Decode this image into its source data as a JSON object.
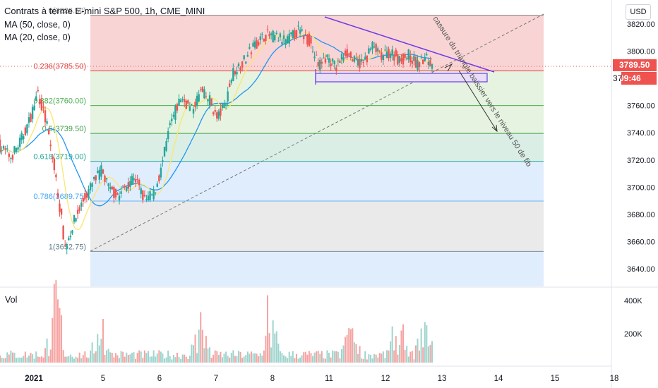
{
  "legend": {
    "title": "Contrats à terme E-mini S&P 500, 1h, CME_MINI",
    "ma50": "MA (50, close, 0)",
    "ma20": "MA (20, close, 0)"
  },
  "currency_button": "USD",
  "volume_label": "Vol",
  "last_price": "3789.50",
  "countdown": "09:46",
  "partial_axis_label": "37",
  "colors": {
    "up": "#26a69a",
    "down": "#ef5350",
    "ma50": "#2196f3",
    "ma20": "#fbe76b",
    "triangle": "#6a3de8",
    "fib_red": "#f7c5c5",
    "fib_green": "#dcefd6",
    "fib_teal": "#cde8de",
    "fib_blue": "#d6e7fb",
    "fib_grey": "#e3e3e3"
  },
  "annotation": "cassure du triangle baissier vers le niveau 50 de fib",
  "chart_data": {
    "type": "candlestick",
    "y_axis": {
      "range": [
        3628,
        3836
      ],
      "ticks": [
        "3820.00",
        "3800.00",
        "3780.00",
        "3760.00",
        "3740.00",
        "3720.00",
        "3700.00",
        "3680.00",
        "3660.00",
        "3640.00"
      ]
    },
    "x_axis": {
      "ticks": [
        "2021",
        "5",
        "6",
        "7",
        "8",
        "11",
        "12",
        "13",
        "14",
        "15",
        "18"
      ]
    },
    "volume_axis": {
      "ticks": [
        "400K",
        "200K"
      ]
    },
    "fibonacci": [
      {
        "label": "0(3826.50)",
        "ratio": 0,
        "price": 3826.5
      },
      {
        "label": "0.236(3785.50)",
        "ratio": 0.236,
        "price": 3785.5
      },
      {
        "label": "0.382(3760.00)",
        "ratio": 0.382,
        "price": 3760.0
      },
      {
        "label": "0.5(3739.50)",
        "ratio": 0.5,
        "price": 3739.5
      },
      {
        "label": "0.618(3719.00)",
        "ratio": 0.618,
        "price": 3719.0
      },
      {
        "label": "0.786(3689.75)",
        "ratio": 0.786,
        "price": 3689.75
      },
      {
        "label": "1(3652.75)",
        "ratio": 1,
        "price": 3652.75
      }
    ],
    "series": [
      {
        "name": "MA (50, close, 0)"
      },
      {
        "name": "MA (20, close, 0)"
      }
    ],
    "grid": false
  }
}
